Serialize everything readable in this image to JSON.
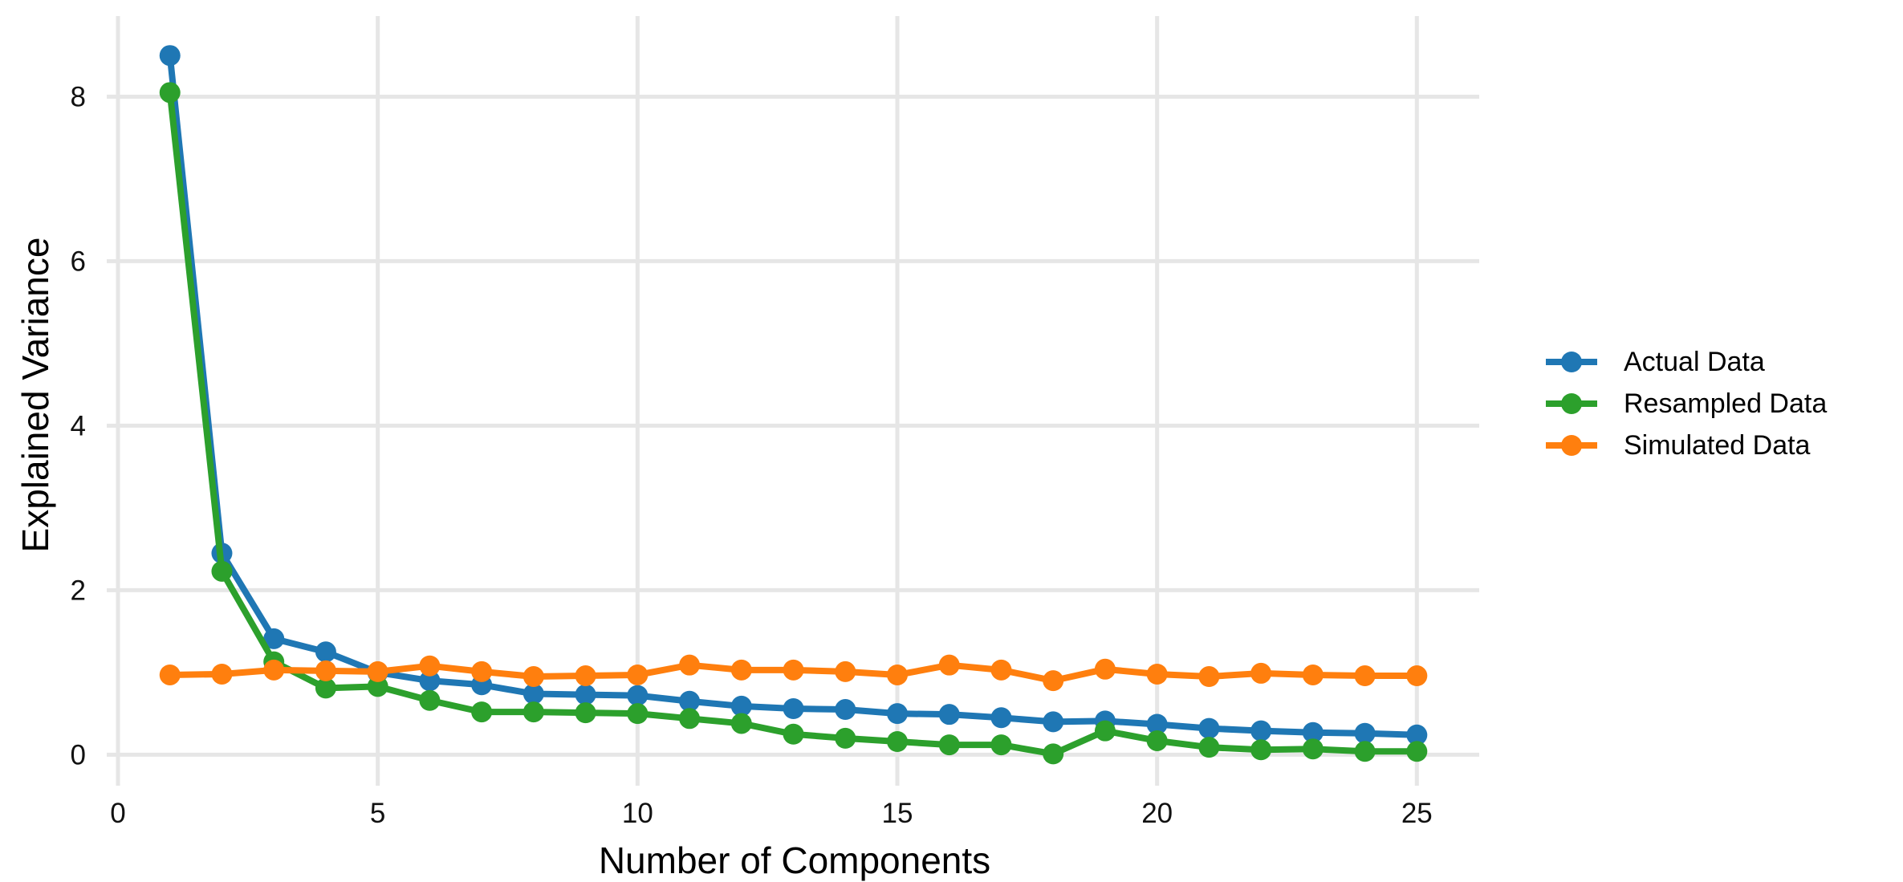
{
  "figure": {
    "background": "#ffffff"
  },
  "chart_data": {
    "type": "line",
    "title": "",
    "xlabel": "Number of Components",
    "ylabel": "Explained Variance",
    "x": [
      1,
      2,
      3,
      4,
      5,
      6,
      7,
      8,
      9,
      10,
      11,
      12,
      13,
      14,
      15,
      16,
      17,
      18,
      19,
      20,
      21,
      22,
      23,
      24,
      25
    ],
    "series": [
      {
        "name": "Actual Data",
        "color": "#1f77b4",
        "marker": "circle",
        "values": [
          8.5,
          2.45,
          1.41,
          1.25,
          1.0,
          0.9,
          0.85,
          0.74,
          0.73,
          0.72,
          0.65,
          0.59,
          0.56,
          0.55,
          0.5,
          0.49,
          0.45,
          0.4,
          0.41,
          0.37,
          0.32,
          0.29,
          0.27,
          0.26,
          0.24
        ]
      },
      {
        "name": "Resampled Data",
        "color": "#2ca02c",
        "marker": "circle",
        "values": [
          8.05,
          2.23,
          1.13,
          0.81,
          0.83,
          0.66,
          0.52,
          0.52,
          0.51,
          0.5,
          0.44,
          0.38,
          0.25,
          0.2,
          0.16,
          0.12,
          0.12,
          0.01,
          0.29,
          0.17,
          0.09,
          0.06,
          0.07,
          0.04,
          0.04
        ]
      },
      {
        "name": "Simulated Data",
        "color": "#ff7f0e",
        "marker": "circle",
        "values": [
          0.97,
          0.98,
          1.03,
          1.02,
          1.01,
          1.08,
          1.01,
          0.95,
          0.96,
          0.97,
          1.09,
          1.03,
          1.03,
          1.01,
          0.97,
          1.09,
          1.03,
          0.9,
          1.04,
          0.98,
          0.95,
          0.99,
          0.97,
          0.96,
          0.96
        ]
      }
    ],
    "xticks": [
      0,
      5,
      10,
      15,
      20,
      25
    ],
    "yticks": [
      0,
      2,
      4,
      6,
      8
    ],
    "xlim": [
      0,
      26.2
    ],
    "ylim": [
      -0.24,
      8.98
    ],
    "grid": true,
    "grid_color": "#e6e6e6",
    "axis_text_color": "#111111",
    "legend_position": "center-right",
    "line_width": 8,
    "marker_radius": 13
  }
}
